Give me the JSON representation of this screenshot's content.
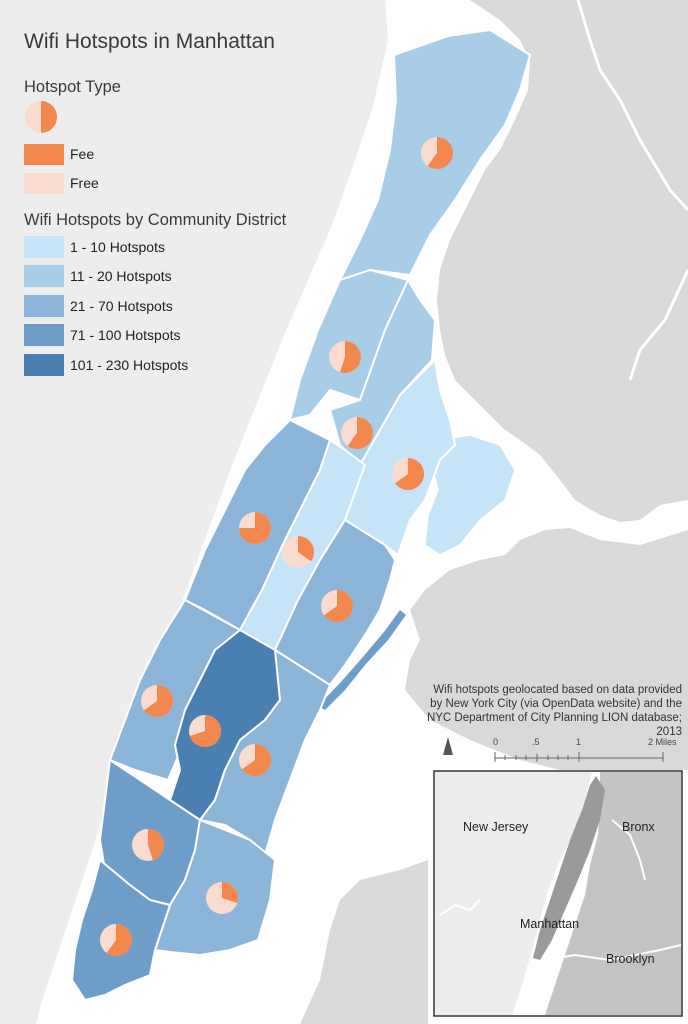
{
  "title": "Wifi Hotspots in Manhattan",
  "legend": {
    "hotspot_type": {
      "title": "Hotspot Type",
      "items": [
        {
          "label": "Fee",
          "color": "#f4874b"
        },
        {
          "label": "Free",
          "color": "#fadbd0"
        }
      ]
    },
    "district_classes": {
      "title": "Wifi Hotspots by Community District",
      "items": [
        {
          "label": "1 - 10 Hotspots",
          "color": "#c6e4f7"
        },
        {
          "label": "11 - 20 Hotspots",
          "color": "#a8cde8"
        },
        {
          "label": "21 - 70 Hotspots",
          "color": "#8cb5da"
        },
        {
          "label": "71 - 100 Hotspots",
          "color": "#6d9dc9"
        },
        {
          "label": "101 - 230 Hotspots",
          "color": "#4a80b1"
        }
      ]
    }
  },
  "credit": "Wifi hotspots geolocated based on data provided by New York City (via OpenData website) and the NYC Department of City Planning LION database; 2013",
  "scale_bar": {
    "labels": [
      "0",
      ".5",
      "1",
      "2 Miles"
    ]
  },
  "inset": {
    "labels": {
      "new_jersey": "New Jersey",
      "bronx": "Bronx",
      "manhattan": "Manhattan",
      "brooklyn": "Brooklyn"
    }
  },
  "colors": {
    "water": "#ffffff",
    "land": "#ededee",
    "other_land": "#d6d6d6",
    "fee": "#f4874b",
    "free": "#fadbd0"
  },
  "districts": [
    {
      "id": "upper-manhattan",
      "class": 1,
      "fee_share": 0.6
    },
    {
      "id": "central-harlem",
      "class": 1,
      "fee_share": 0.55
    },
    {
      "id": "east-harlem",
      "class": 1,
      "fee_share": 0.6
    },
    {
      "id": "upper-east-side-north",
      "class": 0,
      "fee_share": 0.65
    },
    {
      "id": "upper-west-side",
      "class": 2,
      "fee_share": 0.75
    },
    {
      "id": "upper-east-side-south",
      "class": 0,
      "fee_share": 0.35
    },
    {
      "id": "midtown-east",
      "class": 2,
      "fee_share": 0.65
    },
    {
      "id": "chelsea-clinton",
      "class": 2,
      "fee_share": 0.65
    },
    {
      "id": "midtown",
      "class": 4,
      "fee_share": 0.7
    },
    {
      "id": "murray-hill",
      "class": 2,
      "fee_share": 0.65
    },
    {
      "id": "greenwich-village",
      "class": 3,
      "fee_share": 0.45
    },
    {
      "id": "lower-east-side",
      "class": 2,
      "fee_share": 0.3
    },
    {
      "id": "financial-district",
      "class": 3,
      "fee_share": 0.6
    }
  ]
}
